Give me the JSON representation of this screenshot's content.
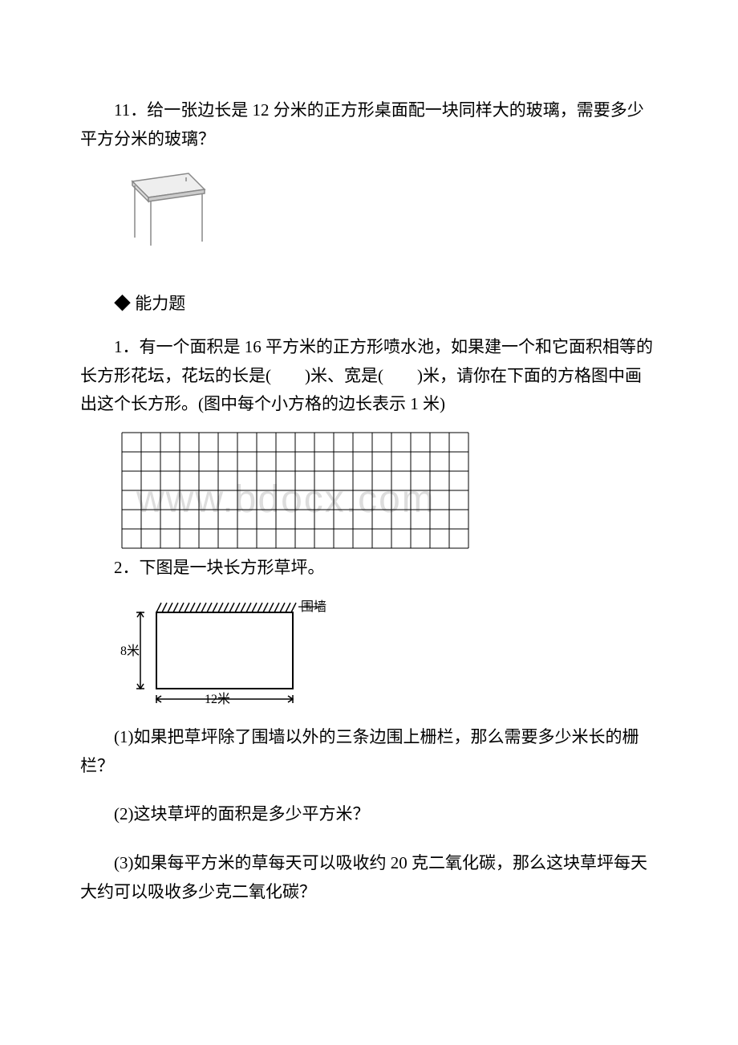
{
  "question11": {
    "text": "11．给一张边长是 12 分米的正方形桌面配一块同样大的玻璃，需要多少平方分米的玻璃？"
  },
  "sectionHeader": "◆ 能力题",
  "question1": {
    "text": "1．有一个面积是 16 平方米的正方形喷水池，如果建一个和它面积相等的长方形花坛，花坛的长是(　　)米、宽是(　　)米，请你在下面的方格图中画出这个长方形。(图中每个小方格的边长表示 1 米)",
    "grid": {
      "cols": 18,
      "rows": 6,
      "cellSize": 24,
      "strokeColor": "#000000"
    }
  },
  "question2": {
    "prefix": "2．",
    "text": "下图是一块长方形草坪。",
    "diagram": {
      "heightLabel": "8米",
      "widthLabel": "12米",
      "wallLabel": "围墙"
    },
    "sub1": "(1)如果把草坪除了围墙以外的三条边围上栅栏，那么需要多少米长的栅栏？",
    "sub2": "(2)这块草坪的面积是多少平方米？",
    "sub3": "(3)如果每平方米的草每天可以吸收约 20 克二氧化碳，那么这块草坪每天大约可以吸收多少克二氧化碳？"
  },
  "watermarkText": "www.bdocx.com",
  "tableSketch": {
    "color": "#999999"
  }
}
